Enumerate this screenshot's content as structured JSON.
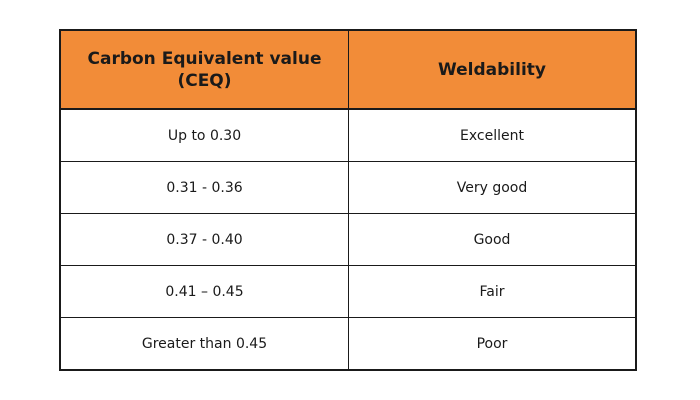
{
  "table": {
    "headers": [
      "Carbon Equivalent value (CEQ)",
      "Weldability"
    ],
    "rows": [
      [
        "Up to 0.30",
        "Excellent"
      ],
      [
        "0.31 - 0.36",
        "Very good"
      ],
      [
        "0.37 - 0.40",
        "Good"
      ],
      [
        "0.41 – 0.45",
        "Fair"
      ],
      [
        "Greater than 0.45",
        "Poor"
      ]
    ]
  },
  "colors": {
    "header_bg": "#f28c38",
    "border": "#1a1a1a",
    "text": "#1a1a1a",
    "background": "#ffffff"
  }
}
